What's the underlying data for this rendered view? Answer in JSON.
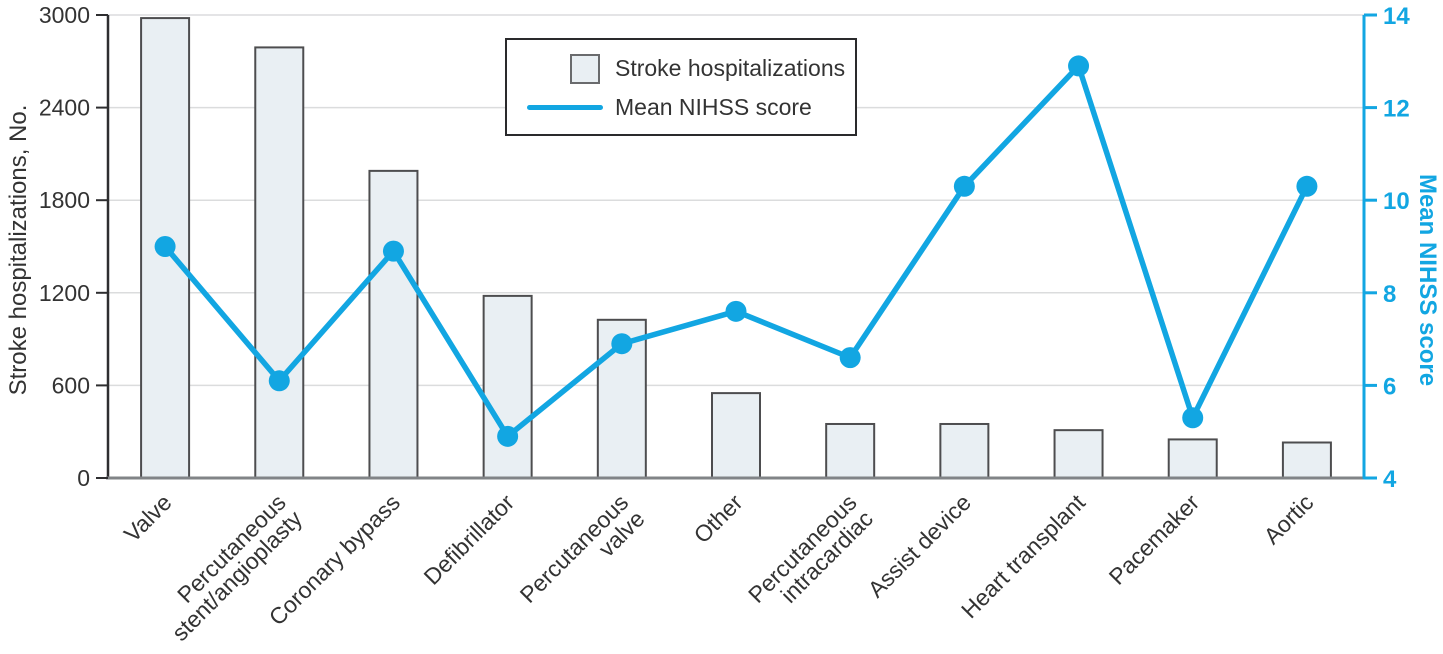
{
  "axes": {
    "left_title": "Stroke hospitalizations, No.",
    "right_title": "Mean NIHSS score"
  },
  "legend": {
    "bar_label": "Stroke hospitalizations",
    "line_label": "Mean NIHSS score"
  },
  "colors": {
    "line": "#12A6E2",
    "bar_fill": "#E9EFF3",
    "bar_border": "#4D4D4F",
    "grid": "#DBDCDD",
    "axis_left": "#2E2E30",
    "axis_bottom": "#818487",
    "text": "#333333",
    "background": "#FFFFFF"
  },
  "chart_data": {
    "type": "bar",
    "subtype": "bar+line combo, dual y-axes",
    "title": "",
    "categories": [
      "Valve",
      "Percutaneous stent/angioplasty",
      "Coronary bypass",
      "Defibrillator",
      "Percutaneous valve",
      "Other",
      "Percutaneous intracardiac",
      "Assist device",
      "Heart transplant",
      "Pacemaker",
      "Aortic"
    ],
    "category_display_lines": [
      [
        "Valve"
      ],
      [
        "Percutaneous",
        "stent/angioplasty"
      ],
      [
        "Coronary bypass"
      ],
      [
        "Defibrillator"
      ],
      [
        "Percutaneous",
        "valve"
      ],
      [
        "Other"
      ],
      [
        "Percutaneous",
        "intracardiac"
      ],
      [
        "Assist device"
      ],
      [
        "Heart transplant"
      ],
      [
        "Pacemaker"
      ],
      [
        "Aortic"
      ]
    ],
    "series": [
      {
        "name": "Stroke hospitalizations",
        "type": "bar",
        "axis": "left",
        "values": [
          2980,
          2790,
          1990,
          1180,
          1025,
          550,
          350,
          350,
          310,
          250,
          230
        ]
      },
      {
        "name": "Mean NIHSS score",
        "type": "line",
        "axis": "right",
        "values": [
          9.0,
          6.1,
          8.9,
          4.9,
          6.9,
          7.6,
          6.6,
          10.3,
          12.9,
          5.3,
          10.3
        ]
      }
    ],
    "left_axis": {
      "title": "Stroke hospitalizations, No.",
      "min": 0,
      "max": 3000,
      "ticks": [
        0,
        600,
        1200,
        1800,
        2400,
        3000
      ]
    },
    "right_axis": {
      "title": "Mean NIHSS score",
      "min": 4,
      "max": 14,
      "ticks": [
        4,
        6,
        8,
        10,
        12,
        14
      ]
    },
    "grid": "horizontal gridlines at left-axis ticks",
    "legend_position": "top-center, boxed"
  }
}
